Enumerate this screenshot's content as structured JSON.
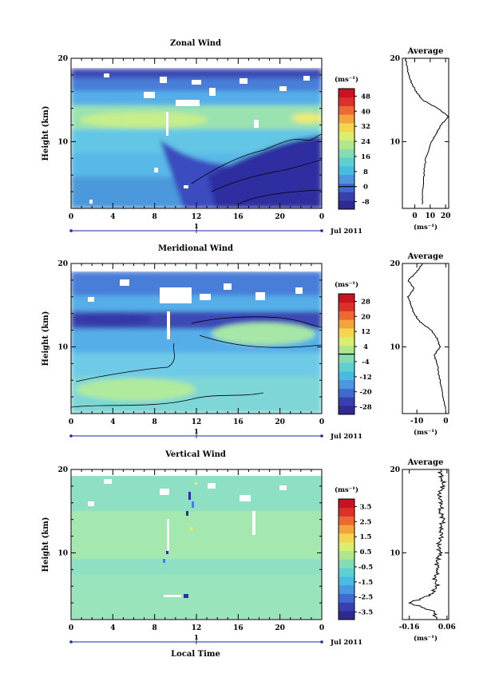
{
  "figure": {
    "unit_label": "(ms⁻¹)",
    "date_label": "Jul 2011",
    "xlabel": "Local Time",
    "ylabel": "Height (km)",
    "day_label": "1"
  },
  "chart_data": [
    {
      "type": "heatmap",
      "title": "Zonal Wind",
      "ylabel": "Height (km)",
      "x_ticks": [
        "0",
        "4",
        "8",
        "12",
        "16",
        "20",
        "0"
      ],
      "xlim": [
        0,
        24
      ],
      "y_ticks": [
        "20",
        "10"
      ],
      "ylim": [
        2,
        20
      ],
      "colorbar_ticks": [
        "48",
        "40",
        "32",
        "24",
        "16",
        "8",
        "0",
        "-8"
      ],
      "colorbar_range": [
        -12,
        52
      ],
      "contour_level": 0,
      "average": {
        "title": "Average",
        "xlim": [
          -8,
          22
        ],
        "x_ticks": [
          "0",
          "10",
          "20"
        ],
        "xlabel": "(ms⁻¹)",
        "height": [
          2.5,
          4,
          6,
          8,
          10,
          11,
          12,
          13,
          14,
          15,
          16,
          17,
          18,
          19,
          20
        ],
        "value": [
          5,
          5,
          6,
          7,
          11,
          14,
          17,
          22,
          15,
          5,
          1,
          -2,
          -4,
          -5,
          -6
        ]
      }
    },
    {
      "type": "heatmap",
      "title": "Meridional Wind",
      "ylabel": "Height (km)",
      "x_ticks": [
        "0",
        "4",
        "8",
        "12",
        "16",
        "20",
        "0"
      ],
      "xlim": [
        0,
        24
      ],
      "y_ticks": [
        "20",
        "10"
      ],
      "ylim": [
        2,
        20
      ],
      "colorbar_ticks": [
        "28",
        "20",
        "12",
        "4",
        "-4",
        "-12",
        "-20",
        "-28"
      ],
      "colorbar_range": [
        -32,
        32
      ],
      "contour_level": 0,
      "average": {
        "title": "Average",
        "xlim": [
          -15,
          1
        ],
        "x_ticks": [
          "-10",
          "0"
        ],
        "xlabel": "(ms⁻¹)",
        "height": [
          2.5,
          4,
          6,
          8,
          9,
          10,
          11,
          12,
          13,
          14,
          15,
          16,
          17,
          18,
          19,
          20
        ],
        "value": [
          0,
          -1,
          -2,
          -3,
          -4,
          -2,
          -3,
          -5,
          -9,
          -11,
          -12,
          -13,
          -11,
          -13,
          -10,
          -8
        ]
      }
    },
    {
      "type": "heatmap",
      "title": "Vertical Wind",
      "ylabel": "Height (km)",
      "xlabel": "Local Time",
      "x_ticks": [
        "0",
        "4",
        "8",
        "12",
        "16",
        "20",
        "0"
      ],
      "xlim": [
        0,
        24
      ],
      "y_ticks": [
        "20",
        "10"
      ],
      "ylim": [
        2,
        20
      ],
      "colorbar_ticks": [
        "3.5",
        "2.5",
        "1.5",
        "0.5",
        "-0.5",
        "-1.5",
        "-2.5",
        "-3.5"
      ],
      "colorbar_range": [
        -4,
        4
      ],
      "average": {
        "title": "Average",
        "xlim": [
          -0.2,
          0.07
        ],
        "x_ticks": [
          "-0.16",
          "0.06"
        ],
        "xlabel": "(ms⁻¹)",
        "height": [
          2,
          3,
          4,
          5,
          6,
          7,
          8,
          9,
          10,
          11,
          12,
          13,
          14,
          15,
          16,
          17,
          18,
          19,
          20
        ],
        "value": [
          0.0,
          -0.02,
          -0.16,
          -0.03,
          0.0,
          -0.01,
          0.01,
          0.0,
          0.02,
          0.01,
          0.03,
          0.02,
          0.04,
          0.02,
          0.03,
          0.01,
          0.04,
          0.03,
          0.02
        ]
      }
    }
  ]
}
